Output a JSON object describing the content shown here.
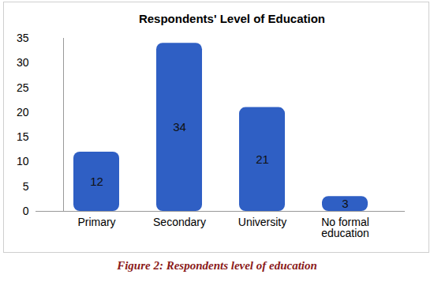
{
  "chart_data": {
    "type": "bar",
    "title": "Respondents' Level of Education",
    "caption": "Figure 2: Respondents level of education",
    "categories": [
      "Primary",
      "Secondary",
      "University",
      "No formal education"
    ],
    "values": [
      12,
      34,
      21,
      3
    ],
    "color": "#2f5fc4",
    "ylim": [
      0,
      35
    ],
    "yticks": [
      0,
      5,
      10,
      15,
      20,
      25,
      30,
      35
    ],
    "grid": false,
    "data_labels": true
  }
}
